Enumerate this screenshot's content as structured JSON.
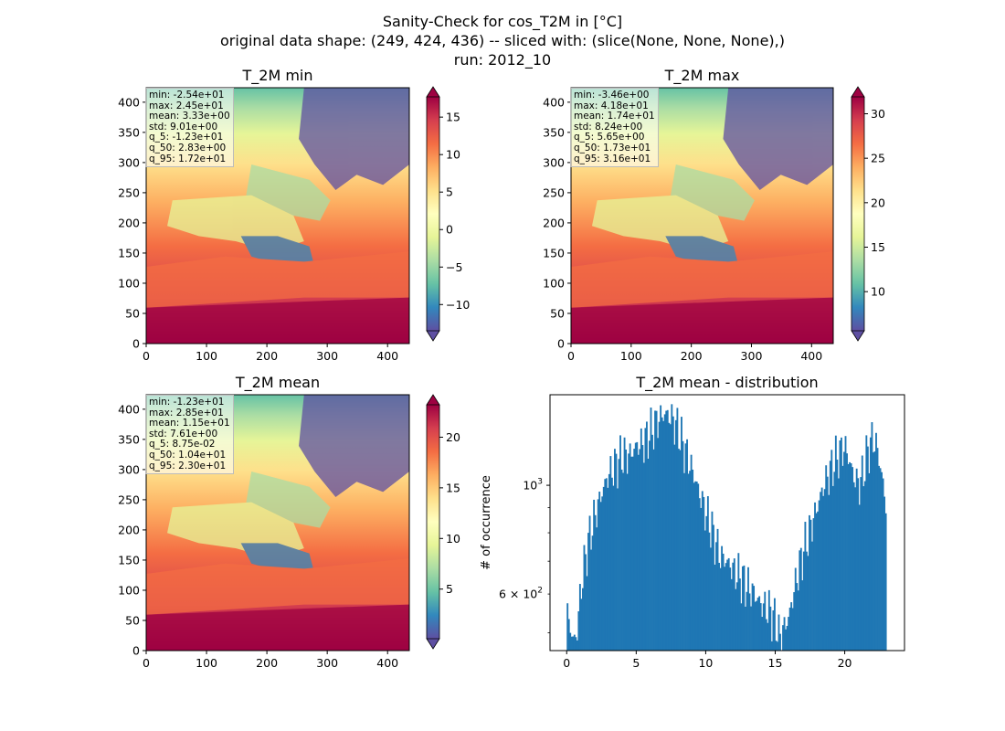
{
  "figure": {
    "title_lines": [
      "Sanity-Check for cos_T2M in [°C]",
      "original data shape: (249, 424, 436) -- sliced with: (slice(None, None, None),)",
      "run: 2012_10"
    ]
  },
  "chart_data": [
    {
      "type": "heatmap",
      "title": "T_2M min",
      "colormap": "Spectral_r",
      "xlim": [
        0,
        436
      ],
      "ylim": [
        0,
        424
      ],
      "xticks": [
        0,
        100,
        200,
        300,
        400
      ],
      "yticks": [
        0,
        50,
        100,
        150,
        200,
        250,
        300,
        350,
        400
      ],
      "colorbar": {
        "range": [
          -13.5,
          17.7
        ],
        "ticks": [
          -10,
          -5,
          0,
          5,
          10,
          15
        ],
        "tick_labels": [
          "−10",
          "−5",
          "0",
          "5",
          "10",
          "15"
        ],
        "extend": "both"
      },
      "stats": [
        "min: -2.54e+01",
        "max: 2.45e+01",
        "mean: 3.33e+00",
        "std: 9.01e+00",
        "q_5: -1.23e+01",
        "q_50: 2.83e+00",
        "q_95: 1.72e+01"
      ]
    },
    {
      "type": "heatmap",
      "title": "T_2M max",
      "colormap": "Spectral_r",
      "xlim": [
        0,
        436
      ],
      "ylim": [
        0,
        424
      ],
      "xticks": [
        0,
        100,
        200,
        300,
        400
      ],
      "yticks": [
        0,
        50,
        100,
        150,
        200,
        250,
        300,
        350,
        400
      ],
      "colorbar": {
        "range": [
          5.6,
          31.9
        ],
        "ticks": [
          10,
          15,
          20,
          25,
          30
        ],
        "tick_labels": [
          "10",
          "15",
          "20",
          "25",
          "30"
        ],
        "extend": "both"
      },
      "stats": [
        "min: -3.46e+00",
        "max: 4.18e+01",
        "mean: 1.74e+01",
        "std: 8.24e+00",
        "q_5: 5.65e+00",
        "q_50: 1.73e+01",
        "q_95: 3.16e+01"
      ]
    },
    {
      "type": "heatmap",
      "title": "T_2M mean",
      "colormap": "Spectral_r",
      "xlim": [
        0,
        436
      ],
      "ylim": [
        0,
        424
      ],
      "xticks": [
        0,
        100,
        200,
        300,
        400
      ],
      "yticks": [
        0,
        50,
        100,
        150,
        200,
        250,
        300,
        350,
        400
      ],
      "colorbar": {
        "range": [
          0.1,
          23.2
        ],
        "ticks": [
          5,
          10,
          15,
          20
        ],
        "tick_labels": [
          "5",
          "10",
          "15",
          "20"
        ],
        "extend": "both"
      },
      "stats": [
        "min: -1.23e+01",
        "max: 2.85e+01",
        "mean: 1.15e+01",
        "std: 7.61e+00",
        "q_5: 8.75e-02",
        "q_50: 1.04e+01",
        "q_95: 2.30e+01"
      ]
    },
    {
      "type": "bar",
      "title": "T_2M mean - distribution",
      "ylabel": "# of occurrence",
      "yscale": "log",
      "color": "#1f77b4",
      "xlim": [
        -1.2,
        24.3
      ],
      "ylim": [
        460,
        1530
      ],
      "xticks": [
        0,
        5,
        10,
        15,
        20
      ],
      "yticks_major": [
        1000
      ],
      "ytick_major_labels": [
        "10^3"
      ],
      "yticks_labeled_minor": [
        600
      ],
      "ytick_minor_labels": [
        "6 × 10^2"
      ],
      "yticks_minor": [
        500,
        700,
        800,
        900
      ],
      "bin_range": [
        0.0,
        23.0
      ],
      "bin_width": 0.1,
      "profile_x": [
        0.0,
        0.1,
        0.2,
        0.4,
        0.6,
        0.8,
        1.0,
        1.3,
        1.6,
        2.0,
        2.5,
        3.0,
        3.5,
        4.0,
        4.5,
        5.0,
        5.5,
        6.0,
        6.5,
        7.0,
        7.5,
        8.0,
        8.5,
        9.0,
        9.5,
        10.0,
        10.5,
        11.0,
        11.5,
        12.0,
        12.5,
        13.0,
        13.5,
        14.0,
        14.5,
        15.0,
        15.3,
        15.6,
        16.0,
        16.5,
        17.0,
        17.5,
        18.0,
        18.5,
        19.0,
        19.5,
        20.0,
        20.3,
        20.6,
        21.0,
        21.3,
        21.6,
        22.0,
        22.3,
        22.6,
        23.0
      ],
      "profile_y": [
        590,
        510,
        525,
        490,
        480,
        520,
        610,
        700,
        780,
        860,
        960,
        1050,
        1100,
        1150,
        1150,
        1200,
        1220,
        1280,
        1350,
        1400,
        1380,
        1300,
        1180,
        1080,
        970,
        880,
        800,
        720,
        700,
        670,
        650,
        620,
        600,
        570,
        560,
        530,
        490,
        510,
        540,
        640,
        730,
        810,
        900,
        1000,
        1080,
        1150,
        1200,
        1130,
        1050,
        1000,
        1050,
        1160,
        1250,
        1200,
        1070,
        900
      ]
    }
  ]
}
